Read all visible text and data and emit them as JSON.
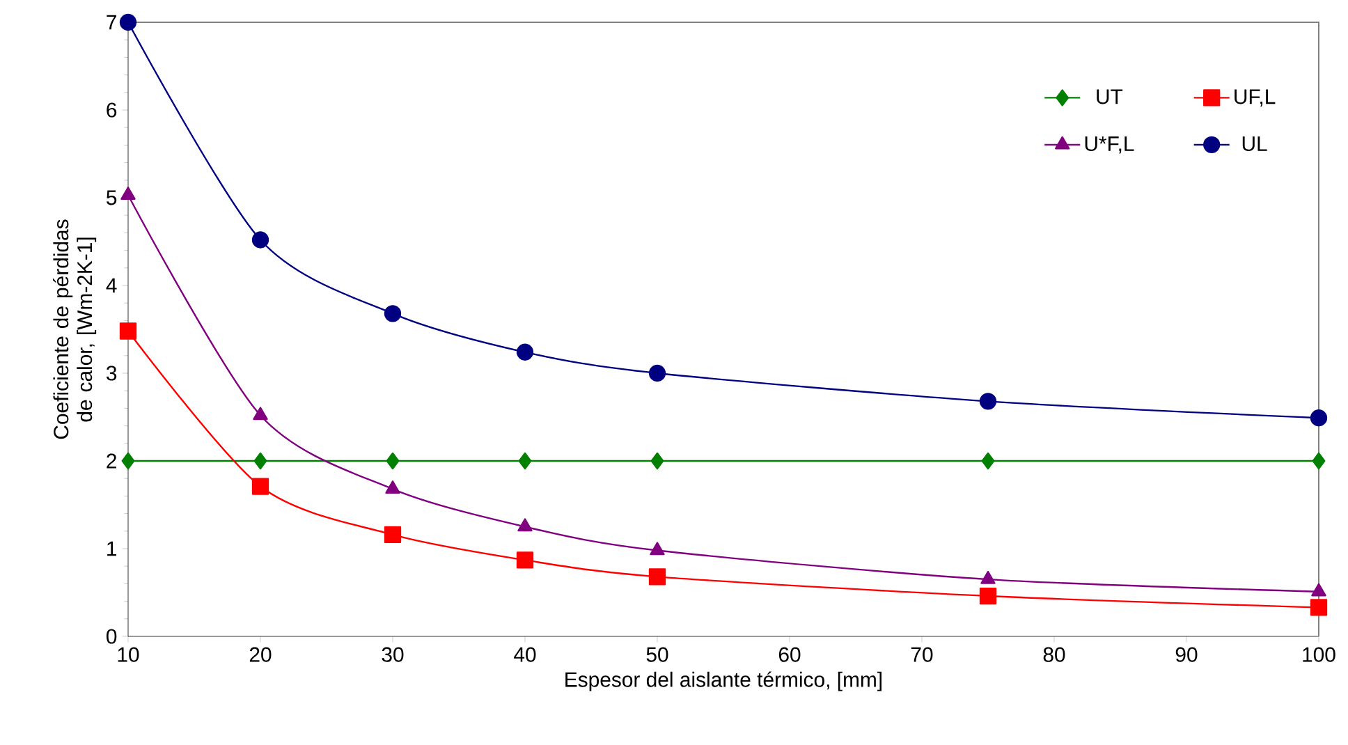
{
  "chart_data": {
    "type": "line",
    "xlabel": "Espesor del aislante térmico, [mm]",
    "ylabel": "Coeficiente de pérdidas de calor, [Wm-2K-1]",
    "x": [
      10,
      20,
      30,
      40,
      50,
      75,
      100
    ],
    "series": [
      {
        "name": "UT",
        "color": "#008000",
        "marker": "diamond",
        "values": [
          2,
          2,
          2,
          2,
          2,
          2,
          2
        ]
      },
      {
        "name": "UF,L",
        "color": "#ff0000",
        "marker": "square",
        "values": [
          3.48,
          1.71,
          1.16,
          0.87,
          0.68,
          0.46,
          0.33
        ]
      },
      {
        "name": "U*F,L",
        "color": "#800080",
        "marker": "triangle",
        "values": [
          5.03,
          2.52,
          1.68,
          1.25,
          0.98,
          0.65,
          0.51
        ]
      },
      {
        "name": "UL",
        "color": "#000080",
        "marker": "circle",
        "values": [
          7.0,
          4.52,
          3.68,
          3.24,
          3.0,
          2.68,
          2.49
        ]
      }
    ],
    "xlim": [
      10,
      100
    ],
    "xticks": [
      10,
      20,
      30,
      40,
      50,
      60,
      70,
      80,
      90,
      100
    ],
    "ylim": [
      0,
      7
    ],
    "yticks": [
      0,
      1,
      2,
      3,
      4,
      5,
      6,
      7
    ],
    "grid": false,
    "legend": "top right",
    "line_style": "solid"
  }
}
